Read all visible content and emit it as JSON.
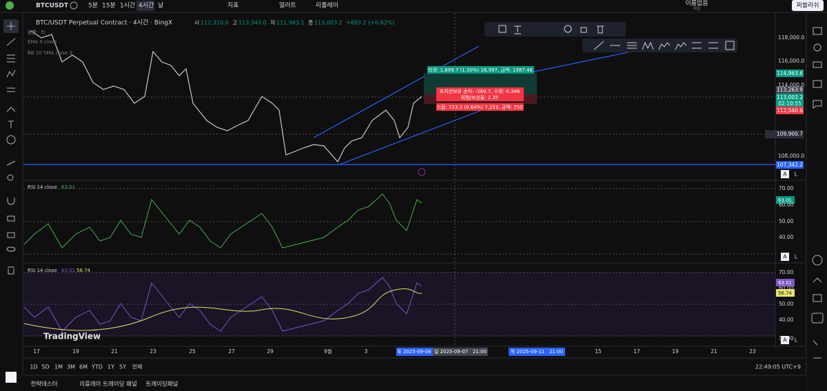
{
  "top_bar": {
    "symbol": "BTCUSDT",
    "intervals": [
      "5분",
      "15분",
      "1시간",
      "4시간",
      "날"
    ],
    "tools": [
      "지표",
      "얼러트",
      "리플레이"
    ],
    "layout_name": "이름없음",
    "save_status": "저장",
    "publish": "퍼블리쉬"
  },
  "chart": {
    "title": "BTC/USDT Perpetual Contract · 4시간 · BingX",
    "ohlc": [
      {
        "label": "시",
        "value": "112,310.0"
      },
      {
        "label": "고",
        "value": "113,343.0"
      },
      {
        "label": "저",
        "value": "111,943.1"
      },
      {
        "label": "종",
        "value": "113,003.2"
      }
    ],
    "change": "+693.2 (+0.62%)",
    "indicators": [
      "볼륨 · 티",
      "EMA 9 close",
      "BB 20 SMA close 2"
    ],
    "price_axis": [
      "118,000.0",
      "116,000.0",
      "114,000.0",
      "108,000.0"
    ],
    "price_labels": {
      "target": "114,963.6",
      "crosshair": "113,263.9",
      "last": "113,003.2",
      "countdown": "02:10:55",
      "stop": "112,540.6",
      "cursor": "109,900.7",
      "line": "107,342.2"
    },
    "position": {
      "target": "타겟: 1,699.7 (1.50%) 16,997, 금액: 1587.48",
      "pnl": "포지션보유 손익: -260.7, 수량: 0.346",
      "ratio": "위험/보상율: 2.35",
      "stop": "스탑: 723.3 (0.64%) 7,233, 금액: 750"
    }
  },
  "rsi_panes": [
    {
      "label": "RSI 14 close",
      "values": [
        "63.01"
      ],
      "axis": [
        "70.00",
        "60.00",
        "50.00",
        "40.00"
      ]
    },
    {
      "label": "RSI 14 close",
      "values": [
        "63.01",
        "56.74"
      ],
      "axis": [
        "70.00",
        "60.00",
        "50.00",
        "40.00",
        "30.00"
      ]
    }
  ],
  "scale_buttons": [
    "A",
    "L"
  ],
  "logo": "TradingView",
  "time_axis": {
    "labels": [
      "17",
      "19",
      "21",
      "23",
      "25",
      "27",
      "29",
      "9월",
      "3",
      "15",
      "17",
      "19",
      "21",
      "23"
    ],
    "highlighted": [
      "토 2025-09-06",
      "일 2025-09-07   21:00",
      "목 2025-09-11   21:00"
    ]
  },
  "ranges": [
    "1D",
    "5D",
    "1M",
    "3M",
    "6M",
    "YTD",
    "1Y",
    "5Y",
    "전체"
  ],
  "clock": "22:49:05 UTC+9",
  "bottom_tabs": [
    "전략테스터",
    "리플레이 트레이딩 패널",
    "트레이딩패널"
  ]
}
